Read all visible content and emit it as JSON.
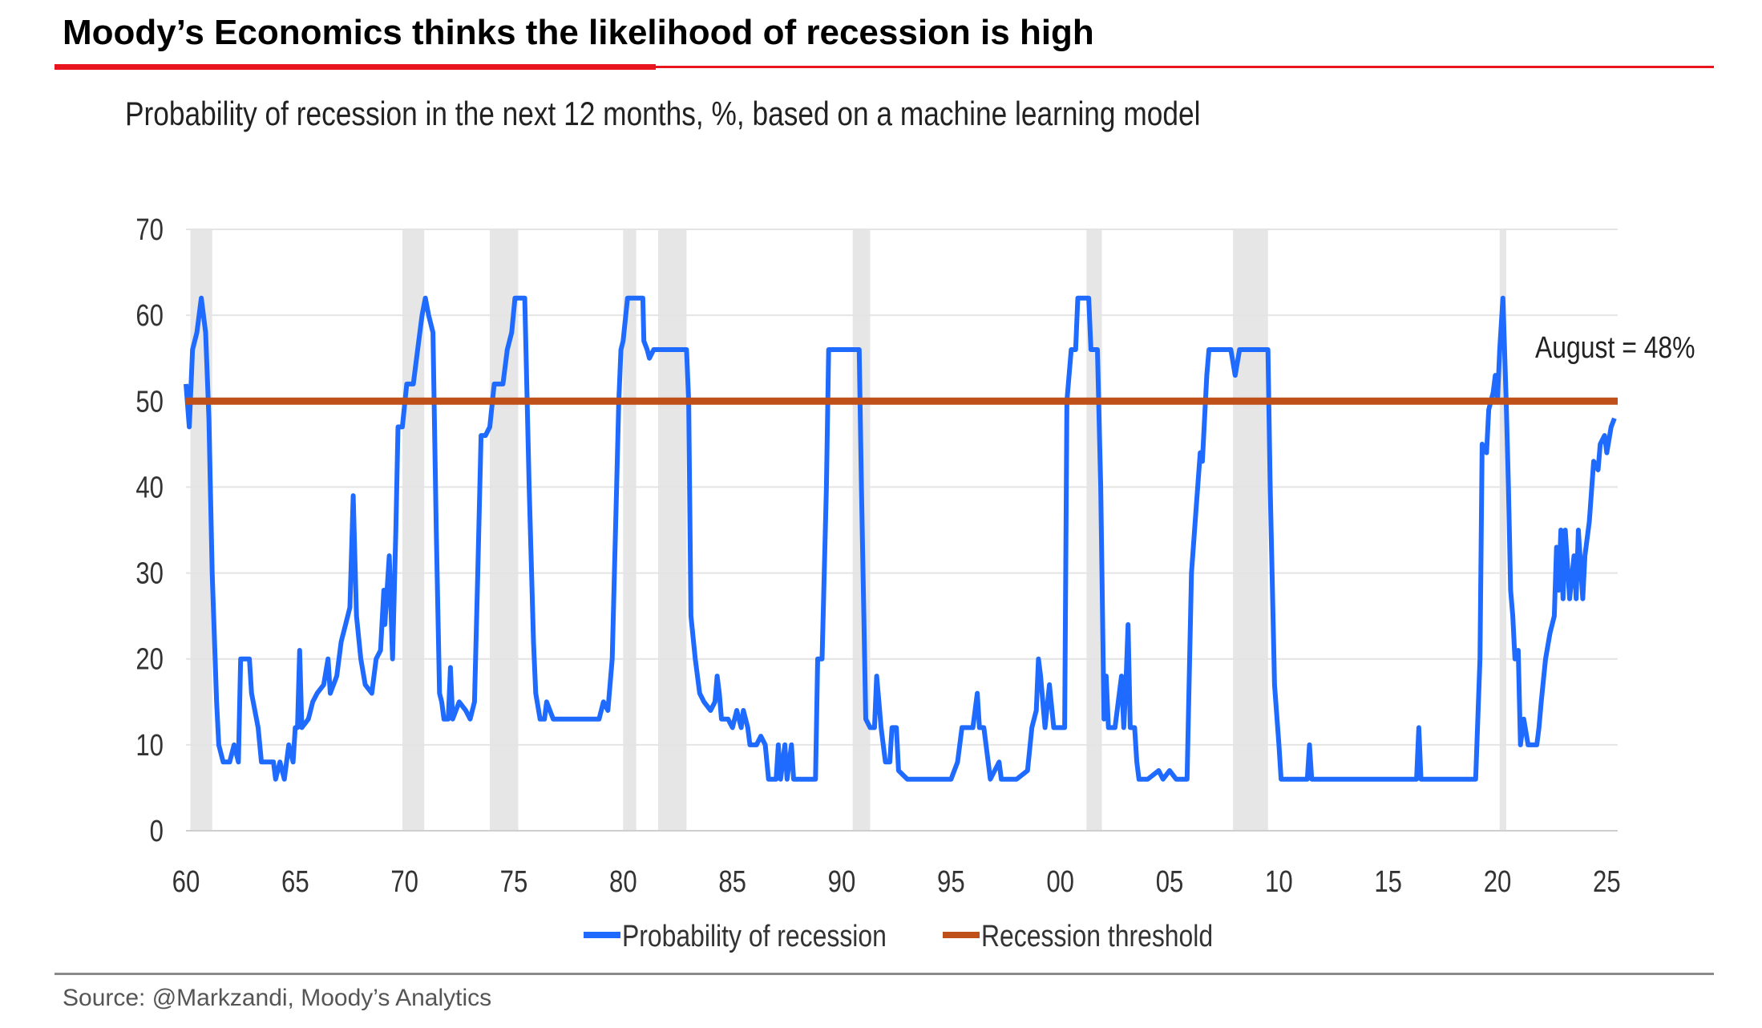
{
  "header": {
    "title": "Moody’s Economics thinks the likelihood of recession is high",
    "accent_color": "#e8141e"
  },
  "footer": {
    "source": "Source: @Markzandi, Moody’s Analytics"
  },
  "chart_data": {
    "type": "line",
    "title": "Probability of recession in the next 12 months, %, based on a machine learning model",
    "xlabel": "",
    "ylabel": "",
    "xlim": [
      1960,
      2025.5
    ],
    "ylim": [
      0,
      70
    ],
    "yticks": [
      0,
      10,
      20,
      30,
      40,
      50,
      60,
      70
    ],
    "xticks": [
      {
        "value": 1960,
        "label": "60"
      },
      {
        "value": 1965,
        "label": "65"
      },
      {
        "value": 1970,
        "label": "70"
      },
      {
        "value": 1975,
        "label": "75"
      },
      {
        "value": 1980,
        "label": "80"
      },
      {
        "value": 1985,
        "label": "85"
      },
      {
        "value": 1990,
        "label": "90"
      },
      {
        "value": 1995,
        "label": "95"
      },
      {
        "value": 2000,
        "label": "00"
      },
      {
        "value": 2005,
        "label": "05"
      },
      {
        "value": 2010,
        "label": "10"
      },
      {
        "value": 2015,
        "label": "15"
      },
      {
        "value": 2020,
        "label": "20"
      },
      {
        "value": 2025,
        "label": "25"
      }
    ],
    "grid": true,
    "legend_position": "bottom-center",
    "recession_shading": [
      [
        1960.2,
        1961.2
      ],
      [
        1969.9,
        1970.9
      ],
      [
        1973.9,
        1975.2
      ],
      [
        1980.0,
        1980.6
      ],
      [
        1981.6,
        1982.9
      ],
      [
        1990.5,
        1991.3
      ],
      [
        2001.2,
        2001.9
      ],
      [
        2007.9,
        2009.5
      ],
      [
        2020.1,
        2020.4
      ]
    ],
    "series": [
      {
        "name": "Probability of recession",
        "color": "#1f6bff",
        "points": [
          [
            1960.0,
            52
          ],
          [
            1960.15,
            47
          ],
          [
            1960.3,
            56
          ],
          [
            1960.5,
            58
          ],
          [
            1960.7,
            62
          ],
          [
            1960.9,
            58
          ],
          [
            1961.05,
            48
          ],
          [
            1961.2,
            30
          ],
          [
            1961.4,
            15
          ],
          [
            1961.5,
            10
          ],
          [
            1961.7,
            8
          ],
          [
            1962.0,
            8
          ],
          [
            1962.2,
            10
          ],
          [
            1962.4,
            8
          ],
          [
            1962.5,
            20
          ],
          [
            1962.9,
            20
          ],
          [
            1963.0,
            16
          ],
          [
            1963.3,
            12
          ],
          [
            1963.45,
            8
          ],
          [
            1963.7,
            8
          ],
          [
            1964.0,
            8
          ],
          [
            1964.1,
            6
          ],
          [
            1964.3,
            8
          ],
          [
            1964.5,
            6
          ],
          [
            1964.7,
            10
          ],
          [
            1964.9,
            8
          ],
          [
            1965.0,
            12
          ],
          [
            1965.1,
            12
          ],
          [
            1965.2,
            21
          ],
          [
            1965.3,
            12
          ],
          [
            1965.6,
            13
          ],
          [
            1965.8,
            15
          ],
          [
            1966.0,
            16
          ],
          [
            1966.3,
            17
          ],
          [
            1966.5,
            20
          ],
          [
            1966.6,
            16
          ],
          [
            1966.9,
            18
          ],
          [
            1967.1,
            22
          ],
          [
            1967.3,
            24
          ],
          [
            1967.5,
            26
          ],
          [
            1967.65,
            39
          ],
          [
            1967.8,
            25
          ],
          [
            1968.0,
            20
          ],
          [
            1968.2,
            17
          ],
          [
            1968.5,
            16
          ],
          [
            1968.7,
            20
          ],
          [
            1968.9,
            21
          ],
          [
            1969.05,
            28
          ],
          [
            1969.1,
            24
          ],
          [
            1969.3,
            32
          ],
          [
            1969.45,
            20
          ],
          [
            1969.6,
            35
          ],
          [
            1969.7,
            47
          ],
          [
            1969.9,
            47
          ],
          [
            1970.1,
            52
          ],
          [
            1970.4,
            52
          ],
          [
            1970.6,
            56
          ],
          [
            1970.8,
            60
          ],
          [
            1970.95,
            62
          ],
          [
            1971.1,
            60
          ],
          [
            1971.3,
            58
          ],
          [
            1971.45,
            35
          ],
          [
            1971.6,
            16
          ],
          [
            1971.7,
            15
          ],
          [
            1971.8,
            13
          ],
          [
            1972.0,
            13
          ],
          [
            1972.1,
            19
          ],
          [
            1972.2,
            13
          ],
          [
            1972.5,
            15
          ],
          [
            1972.8,
            14
          ],
          [
            1973.0,
            13
          ],
          [
            1973.2,
            15
          ],
          [
            1973.35,
            30
          ],
          [
            1973.5,
            46
          ],
          [
            1973.7,
            46
          ],
          [
            1973.9,
            47
          ],
          [
            1974.1,
            52
          ],
          [
            1974.5,
            52
          ],
          [
            1974.7,
            56
          ],
          [
            1974.9,
            58
          ],
          [
            1975.05,
            62
          ],
          [
            1975.5,
            62
          ],
          [
            1975.7,
            40
          ],
          [
            1975.9,
            22
          ],
          [
            1976.0,
            16
          ],
          [
            1976.2,
            13
          ],
          [
            1976.4,
            13
          ],
          [
            1976.5,
            15
          ],
          [
            1976.8,
            13
          ],
          [
            1977.0,
            13
          ],
          [
            1978.0,
            13
          ],
          [
            1978.9,
            13
          ],
          [
            1979.1,
            15
          ],
          [
            1979.3,
            14
          ],
          [
            1979.5,
            20
          ],
          [
            1979.7,
            40
          ],
          [
            1979.8,
            50
          ],
          [
            1979.9,
            56
          ],
          [
            1980.0,
            57
          ],
          [
            1980.2,
            62
          ],
          [
            1980.9,
            62
          ],
          [
            1980.95,
            57
          ],
          [
            1981.1,
            56
          ],
          [
            1981.2,
            55
          ],
          [
            1981.4,
            56
          ],
          [
            1982.9,
            56
          ],
          [
            1983.0,
            50
          ],
          [
            1983.1,
            25
          ],
          [
            1983.3,
            20
          ],
          [
            1983.5,
            16
          ],
          [
            1983.7,
            15
          ],
          [
            1984.0,
            14
          ],
          [
            1984.2,
            15
          ],
          [
            1984.3,
            18
          ],
          [
            1984.4,
            16
          ],
          [
            1984.5,
            13
          ],
          [
            1984.8,
            13
          ],
          [
            1985.0,
            12
          ],
          [
            1985.2,
            14
          ],
          [
            1985.4,
            12
          ],
          [
            1985.5,
            14
          ],
          [
            1985.7,
            12
          ],
          [
            1985.8,
            10
          ],
          [
            1986.1,
            10
          ],
          [
            1986.3,
            11
          ],
          [
            1986.5,
            10
          ],
          [
            1986.65,
            6
          ],
          [
            1987.0,
            6
          ],
          [
            1987.1,
            10
          ],
          [
            1987.2,
            6
          ],
          [
            1987.4,
            10
          ],
          [
            1987.5,
            6
          ],
          [
            1987.7,
            10
          ],
          [
            1987.8,
            6
          ],
          [
            1988.5,
            6
          ],
          [
            1988.8,
            6
          ],
          [
            1988.9,
            20
          ],
          [
            1989.1,
            20
          ],
          [
            1989.3,
            40
          ],
          [
            1989.4,
            56
          ],
          [
            1990.8,
            56
          ],
          [
            1990.9,
            40
          ],
          [
            1991.1,
            13
          ],
          [
            1991.3,
            12
          ],
          [
            1991.5,
            12
          ],
          [
            1991.6,
            18
          ],
          [
            1991.7,
            15
          ],
          [
            1991.8,
            12
          ],
          [
            1992.0,
            8
          ],
          [
            1992.2,
            8
          ],
          [
            1992.3,
            12
          ],
          [
            1992.5,
            12
          ],
          [
            1992.6,
            7
          ],
          [
            1993.0,
            6
          ],
          [
            1994.0,
            6
          ],
          [
            1995.0,
            6
          ],
          [
            1995.3,
            8
          ],
          [
            1995.5,
            12
          ],
          [
            1996.0,
            12
          ],
          [
            1996.2,
            16
          ],
          [
            1996.3,
            12
          ],
          [
            1996.5,
            12
          ],
          [
            1996.7,
            8
          ],
          [
            1996.8,
            6
          ],
          [
            1997.2,
            8
          ],
          [
            1997.3,
            6
          ],
          [
            1998.0,
            6
          ],
          [
            1998.5,
            7
          ],
          [
            1998.7,
            12
          ],
          [
            1998.9,
            14
          ],
          [
            1999.0,
            20
          ],
          [
            1999.1,
            18
          ],
          [
            1999.3,
            12
          ],
          [
            1999.5,
            17
          ],
          [
            1999.7,
            12
          ],
          [
            2000.0,
            12
          ],
          [
            2000.2,
            12
          ],
          [
            2000.3,
            50
          ],
          [
            2000.5,
            56
          ],
          [
            2000.7,
            56
          ],
          [
            2000.8,
            62
          ],
          [
            2001.3,
            62
          ],
          [
            2001.4,
            56
          ],
          [
            2001.7,
            56
          ],
          [
            2001.85,
            40
          ],
          [
            2002.0,
            13
          ],
          [
            2002.1,
            18
          ],
          [
            2002.2,
            12
          ],
          [
            2002.5,
            12
          ],
          [
            2002.8,
            18
          ],
          [
            2002.9,
            12
          ],
          [
            2003.0,
            17
          ],
          [
            2003.1,
            24
          ],
          [
            2003.2,
            12
          ],
          [
            2003.4,
            12
          ],
          [
            2003.5,
            8
          ],
          [
            2003.6,
            6
          ],
          [
            2004.0,
            6
          ],
          [
            2004.5,
            7
          ],
          [
            2004.7,
            6
          ],
          [
            2005.0,
            7
          ],
          [
            2005.3,
            6
          ],
          [
            2005.8,
            6
          ],
          [
            2006.0,
            30
          ],
          [
            2006.2,
            37
          ],
          [
            2006.4,
            44
          ],
          [
            2006.5,
            43
          ],
          [
            2006.7,
            53
          ],
          [
            2006.8,
            56
          ],
          [
            2007.8,
            56
          ],
          [
            2008.0,
            53
          ],
          [
            2008.2,
            56
          ],
          [
            2009.5,
            56
          ],
          [
            2009.6,
            40
          ],
          [
            2009.8,
            17
          ],
          [
            2010.0,
            10
          ],
          [
            2010.1,
            6
          ],
          [
            2011.0,
            6
          ],
          [
            2011.3,
            6
          ],
          [
            2011.4,
            10
          ],
          [
            2011.5,
            6
          ],
          [
            2012.5,
            6
          ],
          [
            2013.0,
            6
          ],
          [
            2014.0,
            6
          ],
          [
            2015.0,
            6
          ],
          [
            2016.0,
            6
          ],
          [
            2016.3,
            6
          ],
          [
            2016.4,
            12
          ],
          [
            2016.5,
            6
          ],
          [
            2017.5,
            6
          ],
          [
            2018.0,
            6
          ],
          [
            2018.5,
            6
          ],
          [
            2018.9,
            6
          ],
          [
            2019.0,
            6
          ],
          [
            2019.2,
            20
          ],
          [
            2019.3,
            45
          ],
          [
            2019.5,
            44
          ],
          [
            2019.6,
            49
          ],
          [
            2019.8,
            51
          ],
          [
            2019.9,
            53
          ],
          [
            2020.0,
            50
          ],
          [
            2020.1,
            56
          ],
          [
            2020.25,
            62
          ],
          [
            2020.4,
            50
          ],
          [
            2020.5,
            40
          ],
          [
            2020.6,
            28
          ],
          [
            2020.7,
            25
          ],
          [
            2020.8,
            20
          ],
          [
            2020.95,
            21
          ],
          [
            2021.05,
            10
          ],
          [
            2021.2,
            13
          ],
          [
            2021.4,
            10
          ],
          [
            2021.6,
            10
          ],
          [
            2021.8,
            10
          ],
          [
            2021.9,
            12
          ],
          [
            2022.0,
            15
          ],
          [
            2022.2,
            20
          ],
          [
            2022.4,
            23
          ],
          [
            2022.6,
            25
          ],
          [
            2022.7,
            33
          ],
          [
            2022.8,
            28
          ],
          [
            2022.9,
            35
          ],
          [
            2023.0,
            27
          ],
          [
            2023.1,
            35
          ],
          [
            2023.3,
            27
          ],
          [
            2023.5,
            32
          ],
          [
            2023.6,
            27
          ],
          [
            2023.7,
            35
          ],
          [
            2023.9,
            27
          ],
          [
            2024.0,
            32
          ],
          [
            2024.2,
            36
          ],
          [
            2024.4,
            43
          ],
          [
            2024.6,
            42
          ],
          [
            2024.7,
            45
          ],
          [
            2024.9,
            46
          ],
          [
            2025.0,
            44
          ],
          [
            2025.2,
            47
          ],
          [
            2025.35,
            48
          ]
        ]
      },
      {
        "name": "Recession threshold",
        "color": "#c0501a",
        "points": [
          [
            1960.0,
            50
          ],
          [
            2025.5,
            50
          ]
        ]
      }
    ],
    "annotations": [
      {
        "text": "August = 48%",
        "x": 2025.35,
        "y": 48
      }
    ]
  }
}
